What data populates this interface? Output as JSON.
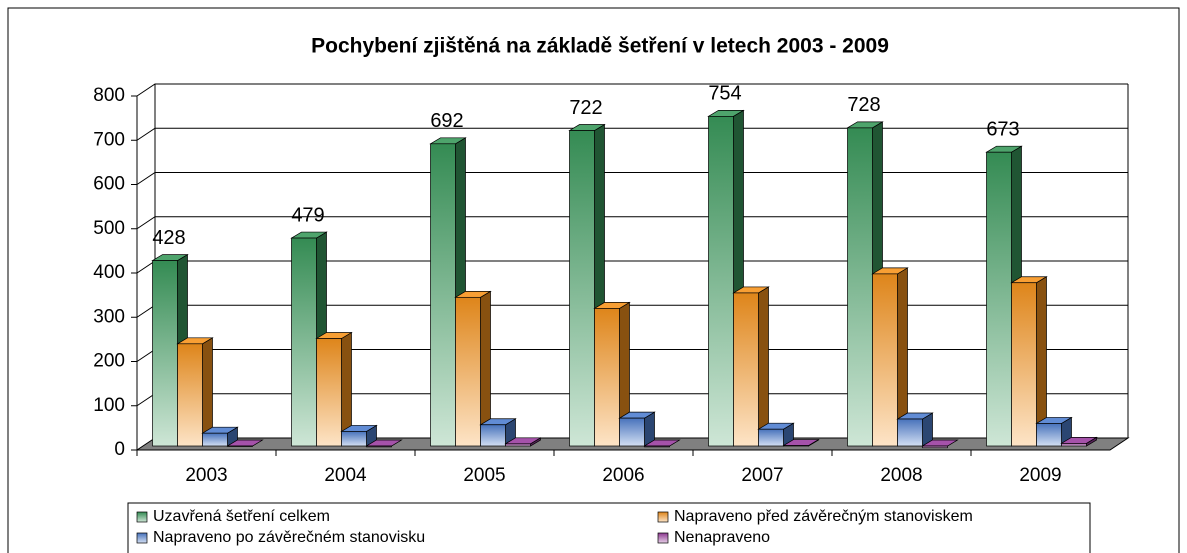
{
  "chart_data": {
    "type": "bar3d",
    "title": "Pochybení zjištěná na základě šetření v letech 2003 - 2009",
    "categories": [
      "2003",
      "2004",
      "2005",
      "2006",
      "2007",
      "2008",
      "2009"
    ],
    "series": [
      {
        "name": "Uzavřená šetření celkem",
        "color": "#3a9a5c",
        "values": [
          428,
          479,
          692,
          722,
          754,
          728,
          673
        ]
      },
      {
        "name": "Napraveno před závěrečným stanoviskem",
        "color": "#f7941d",
        "values": [
          240,
          252,
          345,
          320,
          355,
          398,
          378
        ]
      },
      {
        "name": "Napraveno po závěrečném stanovisku",
        "color": "#4f7fd0",
        "values": [
          38,
          42,
          57,
          72,
          47,
          70,
          60
        ]
      },
      {
        "name": "Nenapraveno",
        "color": "#9b3fa0",
        "values": [
          8,
          7,
          14,
          7,
          10,
          5,
          15
        ]
      }
    ],
    "labeled_series": 0,
    "ylim": [
      0,
      800
    ],
    "yticks": [
      0,
      100,
      200,
      300,
      400,
      500,
      600,
      700,
      800
    ],
    "grid": true
  }
}
